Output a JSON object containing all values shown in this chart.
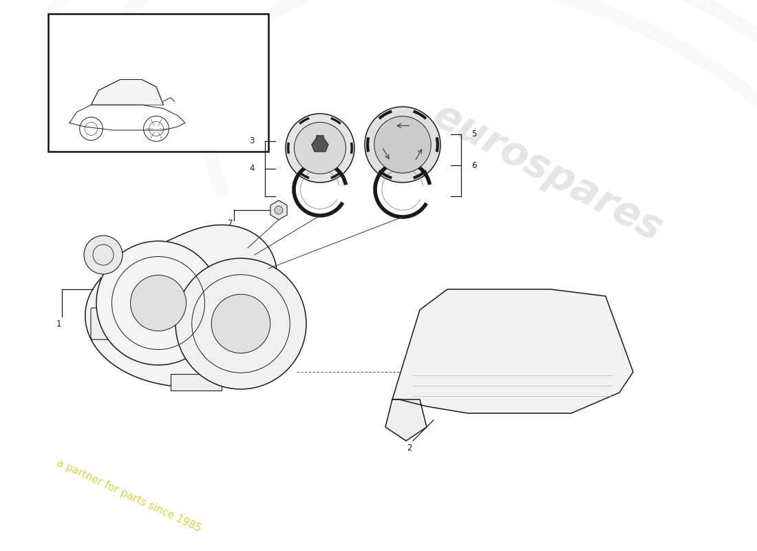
{
  "bg_color": "#ffffff",
  "watermark_text1": "eurospares",
  "watermark_text2": "a partner for parts since 1985",
  "label_color": "#1a1a1a",
  "line_color": "#1a1a1a",
  "lw_main": 1.1,
  "lw_thin": 0.7
}
